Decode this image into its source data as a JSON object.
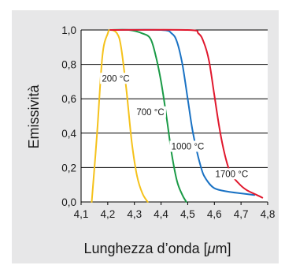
{
  "chart_data": {
    "type": "line",
    "xlabel": "Lunghezza d'onda [μm]",
    "xlabel_prefix": "Lunghezza d’onda [",
    "xlabel_unit": "μ",
    "xlabel_suffix": "m]",
    "ylabel": "Emissività",
    "xlim": [
      4.1,
      4.8
    ],
    "ylim": [
      0.0,
      1.0
    ],
    "x_ticks": [
      "4,1",
      "4,2",
      "4,3",
      "4,4",
      "4,5",
      "4,6",
      "4,7",
      "4,8"
    ],
    "y_ticks": [
      "0,0",
      "0,2",
      "0,4",
      "0,6",
      "0,8",
      "1,0"
    ],
    "grid": "horizontal",
    "background": "#e7e7e8",
    "plot_background": "#ffffff",
    "series": [
      {
        "name": "200 °C",
        "color": "#f5c21b",
        "points": [
          [
            4.14,
            0.0
          ],
          [
            4.16,
            0.4
          ],
          [
            4.18,
            0.85
          ],
          [
            4.2,
            0.98
          ],
          [
            4.21,
            1.0
          ],
          [
            4.235,
            0.98
          ],
          [
            4.25,
            0.9
          ],
          [
            4.27,
            0.65
          ],
          [
            4.29,
            0.35
          ],
          [
            4.31,
            0.15
          ],
          [
            4.33,
            0.05
          ],
          [
            4.35,
            0.0
          ]
        ]
      },
      {
        "name": "700 °C",
        "color": "#1a9a46",
        "points": [
          [
            4.21,
            1.0
          ],
          [
            4.28,
            1.0
          ],
          [
            4.33,
            0.98
          ],
          [
            4.36,
            0.95
          ],
          [
            4.38,
            0.85
          ],
          [
            4.4,
            0.7
          ],
          [
            4.42,
            0.5
          ],
          [
            4.44,
            0.28
          ],
          [
            4.46,
            0.12
          ],
          [
            4.48,
            0.04
          ],
          [
            4.495,
            0.0
          ]
        ]
      },
      {
        "name": "1000 °C",
        "color": "#1a72c4",
        "points": [
          [
            4.21,
            1.0
          ],
          [
            4.4,
            1.0
          ],
          [
            4.44,
            0.98
          ],
          [
            4.46,
            0.93
          ],
          [
            4.48,
            0.8
          ],
          [
            4.5,
            0.6
          ],
          [
            4.52,
            0.4
          ],
          [
            4.55,
            0.2
          ],
          [
            4.57,
            0.13
          ],
          [
            4.6,
            0.08
          ],
          [
            4.65,
            0.06
          ],
          [
            4.7,
            0.05
          ],
          [
            4.75,
            0.04
          ]
        ]
      },
      {
        "name": "1700 °C",
        "color": "#e0182d",
        "points": [
          [
            4.21,
            1.0
          ],
          [
            4.5,
            1.0
          ],
          [
            4.54,
            0.98
          ],
          [
            4.56,
            0.93
          ],
          [
            4.58,
            0.82
          ],
          [
            4.6,
            0.62
          ],
          [
            4.62,
            0.42
          ],
          [
            4.64,
            0.27
          ],
          [
            4.66,
            0.17
          ],
          [
            4.69,
            0.11
          ],
          [
            4.72,
            0.07
          ],
          [
            4.76,
            0.04
          ],
          [
            4.78,
            0.025
          ]
        ]
      }
    ],
    "annotations": [
      {
        "text": "200 °C",
        "x": 4.23,
        "y": 0.705
      },
      {
        "text": "700 °C",
        "x": 4.36,
        "y": 0.51
      },
      {
        "text": "1000 °C",
        "x": 4.5,
        "y": 0.31
      },
      {
        "text": "1700 °C",
        "x": 4.665,
        "y": 0.15
      }
    ]
  }
}
